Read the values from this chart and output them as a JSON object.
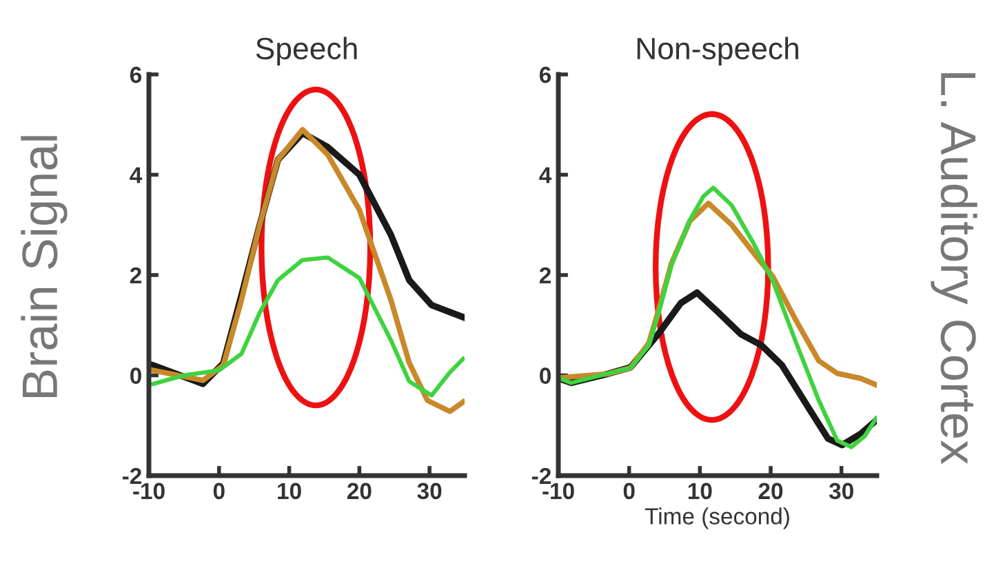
{
  "chart_data": [
    {
      "type": "line",
      "title": "Speech",
      "ylabel": "Brain Signal",
      "xlim": [
        -10,
        35
      ],
      "ylim": [
        -2,
        6
      ],
      "xticks": [
        -10,
        0,
        10,
        20,
        30
      ],
      "yticks": [
        -2,
        0,
        2,
        4,
        6
      ],
      "grid": false,
      "legend": false,
      "marker": "none",
      "line_style": "solid",
      "series": [
        {
          "color": "#1a1a1a",
          "x": [
            -9.4,
            -2.3,
            0.6,
            3.2,
            5.8,
            8.4,
            11.9,
            15.5,
            20,
            24.5,
            27.1,
            30.3,
            34.8
          ],
          "values": [
            0.2,
            -0.17,
            0.24,
            1.6,
            3.0,
            4.3,
            4.83,
            4.55,
            4.0,
            2.8,
            1.9,
            1.4,
            1.16
          ]
        },
        {
          "color": "#c8892a",
          "x": [
            -9.4,
            -2.3,
            0.6,
            3.2,
            5.8,
            8.4,
            11.9,
            15.5,
            20,
            24.5,
            27.1,
            29.7,
            32.9,
            34.8
          ],
          "values": [
            0.1,
            -0.1,
            0.2,
            1.5,
            3.0,
            4.3,
            4.9,
            4.4,
            3.3,
            1.5,
            0.25,
            -0.5,
            -0.72,
            -0.53
          ]
        },
        {
          "color": "#3fd33f",
          "x": [
            -9.4,
            -5,
            0,
            3.2,
            5.8,
            8.4,
            11.9,
            15.5,
            20,
            24.5,
            27.1,
            30.3,
            32.9,
            34.8
          ],
          "values": [
            -0.17,
            0.0,
            0.1,
            0.43,
            1.25,
            1.9,
            2.3,
            2.35,
            1.94,
            0.7,
            -0.12,
            -0.4,
            0.06,
            0.33
          ]
        }
      ]
    },
    {
      "type": "line",
      "title": "Non-speech",
      "xlabel": "Time (second)",
      "annotations": [
        "L. Auditory Cortex"
      ],
      "xlim": [
        -10,
        35
      ],
      "ylim": [
        -2,
        6
      ],
      "xticks": [
        -10,
        0,
        10,
        20,
        30
      ],
      "yticks": [
        -2,
        0,
        2,
        4,
        6
      ],
      "grid": false,
      "legend": false,
      "marker": "none",
      "line_style": "solid",
      "series": [
        {
          "color": "#1a1a1a",
          "x": [
            -10,
            -8.2,
            -3,
            0.2,
            4.1,
            7.3,
            9.6,
            12.5,
            15.8,
            18.7,
            21.6,
            25.5,
            28.1,
            30.1,
            32.7,
            34.9
          ],
          "values": [
            -0.06,
            -0.15,
            0.03,
            0.16,
            0.82,
            1.44,
            1.65,
            1.27,
            0.82,
            0.6,
            0.2,
            -0.68,
            -1.26,
            -1.39,
            -1.17,
            -0.9
          ]
        },
        {
          "color": "#c8892a",
          "x": [
            -10,
            -3,
            0.2,
            2.8,
            4.1,
            6,
            8.6,
            11.2,
            14.5,
            17.7,
            20.3,
            23.6,
            26.8,
            29.4,
            32.7,
            34.9
          ],
          "values": [
            -0.05,
            0.03,
            0.15,
            0.65,
            1.27,
            2.24,
            3.08,
            3.43,
            3.0,
            2.42,
            1.97,
            1.09,
            0.29,
            0.04,
            -0.06,
            -0.19
          ]
        },
        {
          "color": "#3fd33f",
          "x": [
            -10,
            -8.2,
            0.2,
            2.8,
            4.1,
            6,
            8.6,
            10.5,
            11.9,
            14.5,
            17.7,
            20.3,
            23.6,
            26.8,
            29.4,
            31.4,
            33.3,
            34.9
          ],
          "values": [
            -0.05,
            -0.15,
            0.15,
            0.6,
            1.2,
            2.2,
            3.1,
            3.57,
            3.74,
            3.39,
            2.6,
            1.88,
            0.65,
            -0.5,
            -1.3,
            -1.43,
            -1.21,
            -0.86
          ]
        }
      ]
    }
  ]
}
